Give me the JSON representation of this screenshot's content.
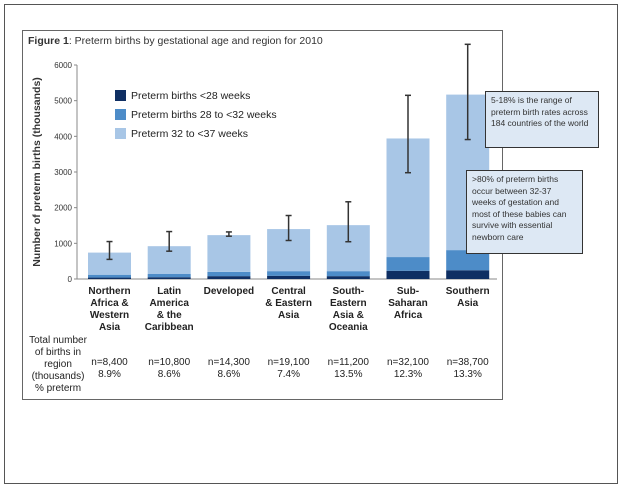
{
  "chart_data": {
    "type": "bar",
    "stacked": true,
    "title_prefix": "Figure 1",
    "title": ": Preterm births by gestational age and region for 2010",
    "ylabel": "Number of preterm births (thousands)",
    "ylim": [
      0,
      6000
    ],
    "yticks": [
      "0",
      "1000",
      "2000",
      "3000",
      "4000",
      "5000",
      "6000"
    ],
    "categories": [
      [
        "Northern",
        "Africa &",
        "Western",
        "Asia"
      ],
      [
        "Latin",
        "America",
        "& the",
        "Caribbean"
      ],
      [
        "Developed"
      ],
      [
        "Central",
        "& Eastern",
        "Asia"
      ],
      [
        "South-",
        "Eastern",
        "Asia &",
        "Oceania"
      ],
      [
        "Sub-",
        "Saharan",
        "Africa"
      ],
      [
        "Southern",
        "Asia"
      ]
    ],
    "series": [
      {
        "name": "Preterm births <28 weeks",
        "color": "#0f2f63",
        "values": [
          40,
          50,
          80,
          90,
          80,
          230,
          245
        ]
      },
      {
        "name": "Preterm births 28 to <32 weeks",
        "color": "#4d8cc8",
        "values": [
          80,
          90,
          120,
          130,
          140,
          385,
          565
        ]
      },
      {
        "name": "Preterm 32 to <37 weeks",
        "color": "#a8c6e6",
        "values": [
          620,
          780,
          1030,
          1180,
          1290,
          3325,
          4360
        ]
      }
    ],
    "error_bars": [
      [
        550,
        1050
      ],
      [
        780,
        1330
      ],
      [
        1200,
        1320
      ],
      [
        1080,
        1780
      ],
      [
        1045,
        2165
      ],
      [
        2980,
        5150
      ],
      [
        3910,
        6580
      ]
    ],
    "totals_label": [
      "Total number",
      "of births in",
      "region",
      "(thousands)",
      "% preterm"
    ],
    "totals": [
      "n=8,400",
      "n=10,800",
      "n=14,300",
      "n=19,100",
      "n=11,200",
      "n=32,100",
      "n=38,700"
    ],
    "percent_preterm": [
      "8.9%",
      "8.6%",
      "8.6%",
      "7.4%",
      "13.5%",
      "12.3%",
      "13.3%"
    ],
    "annotations": [
      "5-18% is the range of preterm birth rates across 184 countries of the world",
      ">80% of preterm births occur between 32-37 weeks of gestation and most of these babies can survive with essential newborn care"
    ]
  }
}
